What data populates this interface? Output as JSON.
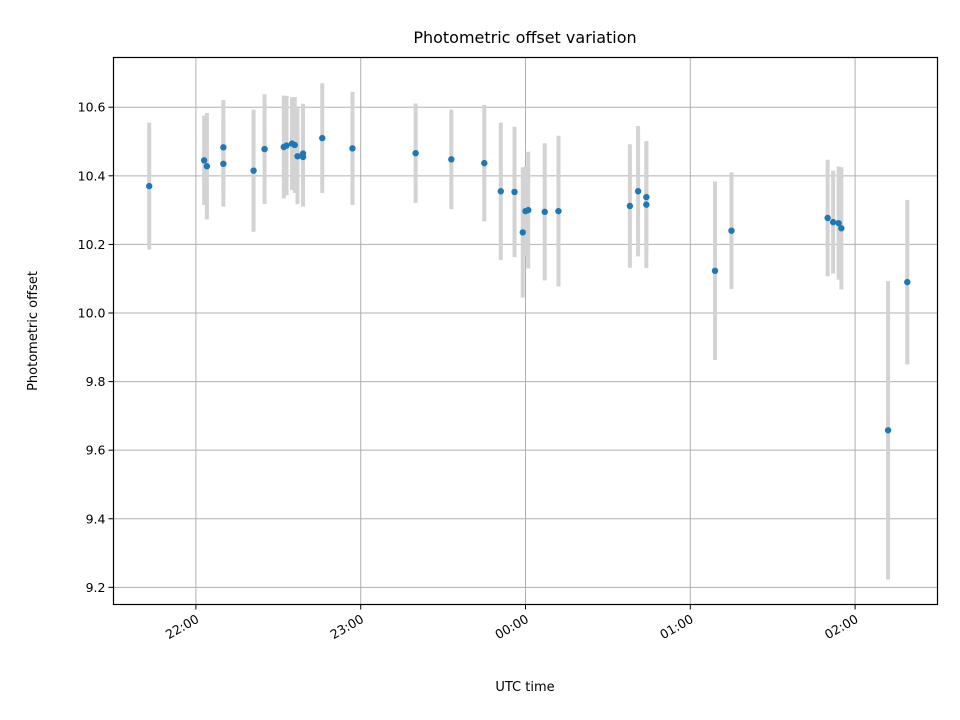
{
  "chart_data": {
    "type": "scatter",
    "title": "Photometric offset variation",
    "xlabel": "UTC time",
    "ylabel": "Photometric offset",
    "xlim": [
      "21:30",
      "02:30"
    ],
    "ylim": [
      9.15,
      10.745
    ],
    "grid": true,
    "x_ticks": [
      "22:00",
      "23:00",
      "00:00",
      "01:00",
      "02:00"
    ],
    "y_ticks": [
      "9.2",
      "9.4",
      "9.6",
      "9.8",
      "10.0",
      "10.2",
      "10.4",
      "10.6"
    ],
    "colors": {
      "point": "#1f77b4",
      "errorbar": "#d3d3d3",
      "grid": "#b0b0b0"
    },
    "points": [
      {
        "x": "21:43",
        "y": 10.37,
        "err": 0.185
      },
      {
        "x": "22:03",
        "y": 10.445,
        "err": 0.13
      },
      {
        "x": "22:04",
        "y": 10.428,
        "err": 0.155
      },
      {
        "x": "22:10",
        "y": 10.483,
        "err": 0.138
      },
      {
        "x": "22:10",
        "y": 10.435,
        "err": 0.125
      },
      {
        "x": "22:21",
        "y": 10.415,
        "err": 0.178
      },
      {
        "x": "22:25",
        "y": 10.478,
        "err": 0.16
      },
      {
        "x": "22:32",
        "y": 10.484,
        "err": 0.15
      },
      {
        "x": "22:33",
        "y": 10.488,
        "err": 0.145
      },
      {
        "x": "22:35",
        "y": 10.494,
        "err": 0.135
      },
      {
        "x": "22:36",
        "y": 10.49,
        "err": 0.14
      },
      {
        "x": "22:37",
        "y": 10.457,
        "err": 0.14
      },
      {
        "x": "22:39",
        "y": 10.465,
        "err": 0.145
      },
      {
        "x": "22:39",
        "y": 10.455,
        "err": 0.145
      },
      {
        "x": "22:46",
        "y": 10.51,
        "err": 0.16
      },
      {
        "x": "22:57",
        "y": 10.48,
        "err": 0.165
      },
      {
        "x": "23:20",
        "y": 10.466,
        "err": 0.145
      },
      {
        "x": "23:33",
        "y": 10.448,
        "err": 0.145
      },
      {
        "x": "23:45",
        "y": 10.437,
        "err": 0.17
      },
      {
        "x": "23:51",
        "y": 10.355,
        "err": 0.2
      },
      {
        "x": "23:56",
        "y": 10.353,
        "err": 0.19
      },
      {
        "x": "23:59",
        "y": 10.235,
        "err": 0.19
      },
      {
        "x": "00:00",
        "y": 10.297,
        "err": 0.13
      },
      {
        "x": "00:01",
        "y": 10.3,
        "err": 0.17
      },
      {
        "x": "00:07",
        "y": 10.295,
        "err": 0.2
      },
      {
        "x": "00:12",
        "y": 10.297,
        "err": 0.22
      },
      {
        "x": "00:38",
        "y": 10.312,
        "err": 0.18
      },
      {
        "x": "00:41",
        "y": 10.355,
        "err": 0.19
      },
      {
        "x": "00:44",
        "y": 10.316,
        "err": 0.185
      },
      {
        "x": "00:44",
        "y": 10.338,
        "err": 0.16
      },
      {
        "x": "01:09",
        "y": 10.123,
        "err": 0.26
      },
      {
        "x": "01:15",
        "y": 10.24,
        "err": 0.17
      },
      {
        "x": "01:50",
        "y": 10.277,
        "err": 0.17
      },
      {
        "x": "01:52",
        "y": 10.265,
        "err": 0.15
      },
      {
        "x": "01:54",
        "y": 10.262,
        "err": 0.165
      },
      {
        "x": "01:55",
        "y": 10.247,
        "err": 0.178
      },
      {
        "x": "02:12",
        "y": 9.658,
        "err": 0.435
      },
      {
        "x": "02:19",
        "y": 10.09,
        "err": 0.24
      }
    ]
  }
}
